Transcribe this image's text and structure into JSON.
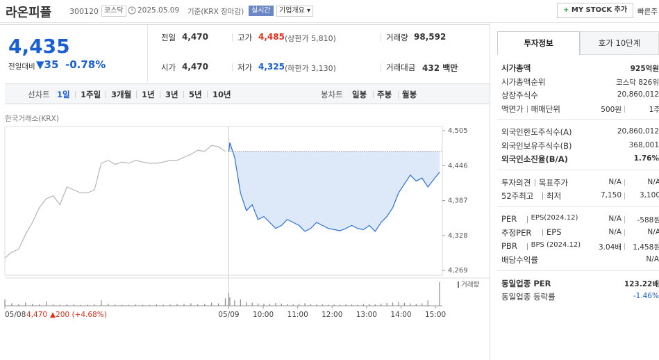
{
  "header": {
    "name": "라온피플",
    "code": "300120",
    "market": "코스닥",
    "date": "2025.05.09",
    "basis": "기준(KRX 장마감)",
    "realtime": "실시간",
    "overview": "기업개요",
    "mystock": "MY STOCK 추가",
    "quick": "빠른주"
  },
  "price": {
    "current": "4,435",
    "change_label": "전일대비",
    "change": "▼35",
    "change_pct": "-0.78%"
  },
  "stats": [
    [
      {
        "label": "전일",
        "value": "4,470"
      },
      {
        "label": "고가",
        "value": "4,485",
        "note": "(상한가 5,810)",
        "color": "#e0301e"
      },
      {
        "label": "거래량",
        "value": "98,592"
      }
    ],
    [
      {
        "label": "시가",
        "value": "4,470"
      },
      {
        "label": "저가",
        "value": "4,325",
        "note": "(하한가 3,130)",
        "color": "#1a5fd1"
      },
      {
        "label": "거래대금",
        "value": "432 백만"
      }
    ]
  ],
  "tabs": {
    "line_label": "선차트",
    "periods": [
      "1일",
      "1주일",
      "3개월",
      "1년",
      "3년",
      "5년",
      "10년"
    ],
    "candle_label": "봉차트",
    "candles": [
      "일봉",
      "주봉",
      "월봉"
    ]
  },
  "chart_data": {
    "type": "line",
    "source": "한국거래소(KRX)",
    "xlim": [
      0,
      12.7
    ],
    "xticks": [
      {
        "value": 0,
        "label": "05/08"
      },
      {
        "value": 6.5,
        "label": "05/09"
      },
      {
        "value": 7.5,
        "label": "10:00"
      },
      {
        "value": 8.5,
        "label": "11:00"
      },
      {
        "value": 9.5,
        "label": "12:00"
      },
      {
        "value": 10.5,
        "label": "13:00"
      },
      {
        "value": 11.5,
        "label": "14:00"
      },
      {
        "value": 12.5,
        "label": "15:00"
      }
    ],
    "ylim": [
      4261,
      4505
    ],
    "yticks": [
      {
        "value": 4505,
        "label": "4,505"
      },
      {
        "value": 4446,
        "label": "4,446"
      },
      {
        "value": 4387,
        "label": "4,387"
      },
      {
        "value": 4328,
        "label": "4,328"
      },
      {
        "value": 4269,
        "label": "4,269"
      }
    ],
    "grid": false,
    "prev_close": 4470,
    "volume_label": "거래량",
    "prev_summary": {
      "close": "4,470",
      "change": "▲200 (+4.68%)"
    },
    "series": [
      {
        "color": "#b5b5b5",
        "x": [
          0,
          0.2,
          0.4,
          0.6,
          0.8,
          1.0,
          1.2,
          1.4,
          1.6,
          1.8,
          2.0,
          2.2,
          2.4,
          2.6,
          2.8,
          3.0,
          3.2,
          3.4,
          3.6,
          3.8,
          4.0,
          4.2,
          4.4,
          4.6,
          4.8,
          5.0,
          5.2,
          5.4,
          5.6,
          5.8,
          6.0,
          6.2,
          6.4
        ],
        "values": [
          4290,
          4300,
          4305,
          4330,
          4350,
          4375,
          4390,
          4395,
          4380,
          4410,
          4405,
          4400,
          4400,
          4405,
          4450,
          4455,
          4448,
          4452,
          4450,
          4455,
          4452,
          4450,
          4450,
          4452,
          4455,
          4455,
          4460,
          4465,
          4472,
          4470,
          4480,
          4478,
          4470
        ],
        "volume": [
          3000,
          1200,
          800,
          1500,
          900,
          600,
          2000,
          700,
          500,
          800,
          600,
          400,
          500,
          700,
          2500,
          900,
          600,
          500,
          400,
          600,
          500,
          400,
          700,
          500,
          600,
          800,
          900,
          1200,
          700,
          900,
          1500,
          1100,
          3500
        ]
      },
      {
        "color": "#2a6fdb",
        "fill": "#dde8f8",
        "x": [
          6.5,
          6.53,
          6.67,
          6.84,
          7.01,
          7.18,
          7.35,
          7.52,
          7.69,
          7.86,
          8.03,
          8.2,
          8.37,
          8.54,
          8.71,
          8.88,
          9.05,
          9.22,
          9.39,
          9.56,
          9.73,
          9.9,
          10.07,
          10.24,
          10.41,
          10.58,
          10.75,
          10.92,
          11.09,
          11.26,
          11.43,
          11.6,
          11.77,
          11.94,
          12.11,
          12.28,
          12.62
        ],
        "values": [
          4470,
          4485,
          4460,
          4400,
          4370,
          4380,
          4355,
          4360,
          4350,
          4340,
          4345,
          4355,
          4350,
          4345,
          4335,
          4340,
          4350,
          4345,
          4340,
          4338,
          4336,
          4340,
          4345,
          4340,
          4338,
          4345,
          4335,
          4350,
          4360,
          4375,
          4400,
          4415,
          4430,
          4420,
          4425,
          4410,
          4435
        ],
        "volume": [
          6000,
          4000,
          2500,
          3000,
          1800,
          1500,
          1200,
          1000,
          900,
          1400,
          1000,
          800,
          700,
          900,
          1200,
          800,
          600,
          700,
          500,
          600,
          500,
          700,
          600,
          500,
          800,
          900,
          700,
          1000,
          1300,
          1500,
          1800,
          1400,
          1100,
          900,
          1200,
          2500,
          11000
        ]
      }
    ]
  },
  "side": {
    "tabs": [
      "투자정보",
      "호가 10단계"
    ],
    "groups": [
      [
        {
          "labels": [
            "시가총액"
          ],
          "values": [
            "925억원"
          ],
          "emphasis": true
        },
        {
          "labels": [
            "시가총액순위"
          ],
          "values": [
            "코스닥 826위"
          ]
        },
        {
          "labels": [
            "상장주식수"
          ],
          "values": [
            "20,860,012"
          ]
        },
        {
          "labels": [
            "액면가",
            "매매단위"
          ],
          "values": [
            "500원",
            "1주"
          ]
        }
      ],
      [
        {
          "labels": [
            "외국인한도주식수(A)"
          ],
          "values": [
            "20,860,012"
          ]
        },
        {
          "labels": [
            "외국인보유주식수(B)"
          ],
          "values": [
            "368,001"
          ]
        },
        {
          "labels": [
            "외국인소진율(B/A)"
          ],
          "values": [
            "1.76%"
          ],
          "emphasis": true
        }
      ],
      [
        {
          "labels": [
            "투자의견",
            "목표주가"
          ],
          "values": [
            "N/A",
            "N/A"
          ]
        },
        {
          "labels": [
            "52주최고",
            "최저"
          ],
          "values": [
            "7,150",
            "3,100"
          ]
        }
      ],
      [
        {
          "labels": [
            "PER",
            "EPS(2024.12)"
          ],
          "values": [
            "N/A",
            "-588원"
          ]
        },
        {
          "labels": [
            "추정PER",
            "EPS"
          ],
          "values": [
            "N/A",
            "N/A"
          ]
        },
        {
          "labels": [
            "PBR",
            "BPS (2024.12)"
          ],
          "values": [
            "3.04배",
            "1,458원"
          ]
        },
        {
          "labels": [
            "배당수익률"
          ],
          "values": [
            "N/A"
          ]
        }
      ],
      [
        {
          "labels": [
            "동일업종 PER"
          ],
          "values": [
            "123.22배"
          ],
          "emphasis": true
        },
        {
          "labels": [
            "동일업종 등락률"
          ],
          "values": [
            "-1.46%"
          ],
          "color": "#1a5fd1"
        }
      ]
    ]
  }
}
